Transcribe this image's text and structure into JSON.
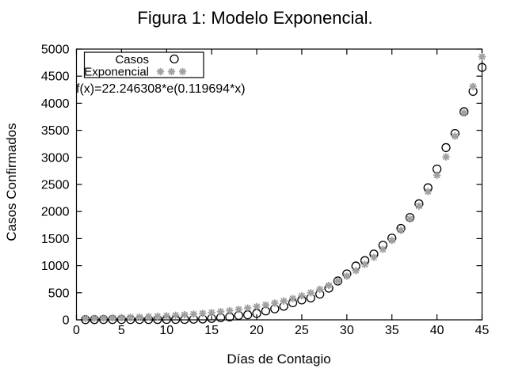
{
  "figure": {
    "title": "Figura 1: Modelo Exponencial.",
    "xlabel": "Días de Contagio",
    "ylabel": "Casos Confirmados",
    "annotation": "f(x)=22.246308*e(0.119694*x)"
  },
  "legend": {
    "series1_label": "Casos",
    "series2_label": "Exponencial"
  },
  "colors": {
    "foreground": "#000000",
    "exponencial_marker": "#a0a0a0",
    "background": "#ffffff"
  },
  "chart_data": {
    "type": "scatter",
    "title": "Figura 1: Modelo Exponencial.",
    "xlabel": "Días de Contagio",
    "ylabel": "Casos Confirmados",
    "xlim": [
      0,
      45
    ],
    "ylim": [
      0,
      5000
    ],
    "xticks": [
      0,
      5,
      10,
      15,
      20,
      25,
      30,
      35,
      40,
      45
    ],
    "yticks": [
      0,
      500,
      1000,
      1500,
      2000,
      2500,
      3000,
      3500,
      4000,
      4500,
      5000
    ],
    "grid": false,
    "legend_position": "top-left-inside",
    "annotation": "f(x)=22.246308*e(0.119694*x)",
    "x": [
      1,
      2,
      3,
      4,
      5,
      6,
      7,
      8,
      9,
      10,
      11,
      12,
      13,
      14,
      15,
      16,
      17,
      18,
      19,
      20,
      21,
      22,
      23,
      24,
      25,
      26,
      27,
      28,
      29,
      30,
      31,
      32,
      33,
      34,
      35,
      36,
      37,
      38,
      39,
      40,
      41,
      42,
      43,
      44,
      45
    ],
    "series": [
      {
        "name": "Casos",
        "marker": "open-circle",
        "color": "#000000",
        "values": [
          3,
          4,
          5,
          5,
          5,
          5,
          5,
          6,
          6,
          7,
          7,
          7,
          11,
          15,
          26,
          41,
          53,
          82,
          93,
          118,
          164,
          203,
          251,
          316,
          367,
          405,
          475,
          585,
          717,
          848,
          993,
          1094,
          1215,
          1378,
          1510,
          1688,
          1890,
          2143,
          2439,
          2785,
          3181,
          3441,
          3844,
          4219,
          4661
        ]
      },
      {
        "name": "Exponencial",
        "marker": "asterisk",
        "color": "#a0a0a0",
        "fit_a": 22.246308,
        "fit_b": 0.119694,
        "fit_formula": "f(x)=22.246308*e(0.119694*x)",
        "values": [
          25,
          28,
          32,
          36,
          40,
          46,
          51,
          58,
          65,
          74,
          83,
          94,
          105,
          119,
          134,
          151,
          170,
          192,
          216,
          244,
          275,
          310,
          349,
          393,
          443,
          500,
          563,
          635,
          716,
          807,
          909,
          1025,
          1155,
          1302,
          1468,
          1654,
          1864,
          2102,
          2369,
          2670,
          3009,
          3392,
          3823,
          4310,
          4858
        ]
      }
    ]
  }
}
